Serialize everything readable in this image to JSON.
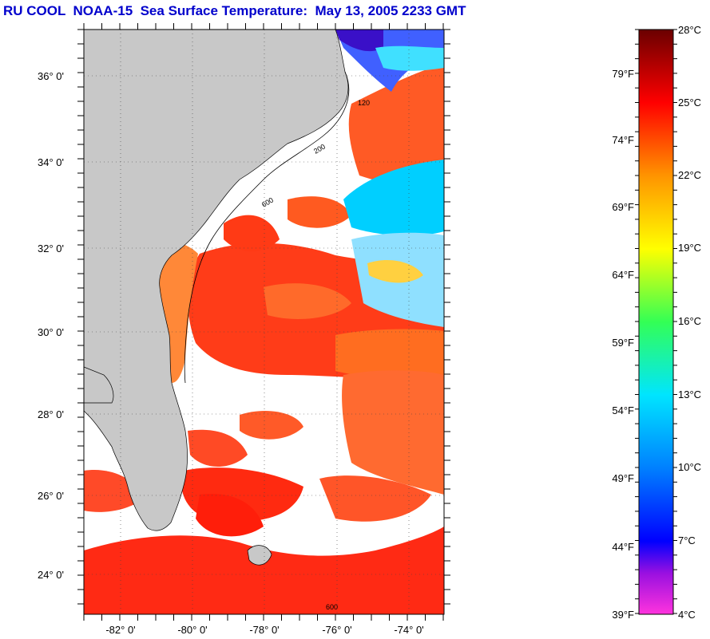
{
  "title": "RU COOL  NOAA-15  Sea Surface Temperature:  May 13, 2005 2233 GMT",
  "map": {
    "lat_labels": [
      "36° 0'",
      "34° 0'",
      "32° 0'",
      "30° 0'",
      "28° 0'",
      "26° 0'",
      "24° 0'"
    ],
    "lon_labels": [
      "-82° 0'",
      "-80° 0'",
      "-78° 0'",
      "-76° 0'",
      "-74° 0'"
    ],
    "isobath_labels": [
      "200",
      "600",
      "120",
      "600"
    ]
  },
  "colorbar": {
    "celsius": [
      "28°C",
      "25°C",
      "22°C",
      "19°C",
      "16°C",
      "13°C",
      "10°C",
      "7°C",
      "4°C"
    ],
    "fahrenheit": [
      "79°F",
      "74°F",
      "69°F",
      "64°F",
      "59°F",
      "54°F",
      "49°F",
      "44°F",
      "39°F"
    ],
    "colors": [
      "#e600e6",
      "#7a00ff",
      "#0000ff",
      "#0077ff",
      "#00d8ff",
      "#00ff88",
      "#9aff00",
      "#ffff00",
      "#ffa200",
      "#ff5a00",
      "#ff0000",
      "#a00000",
      "#7a0000"
    ]
  },
  "colors": {
    "land": "#c8c8c8",
    "cloud": "#ffffff",
    "warm_water": "#ff4a1a",
    "gulf_stream": "#ff3c10",
    "shelf_water": "#ff8c30",
    "cool_water": "#00cfff",
    "cold_water": "#3a20e0"
  }
}
